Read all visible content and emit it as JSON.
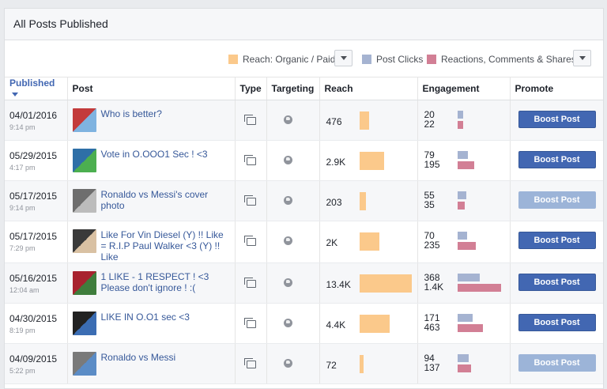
{
  "panel": {
    "title": "All Posts Published"
  },
  "legend": {
    "reach_label": "Reach: Organic / Paid",
    "clicks_label": "Post Clicks",
    "reactions_label": "Reactions, Comments & Shares",
    "colors": {
      "reach": "#fbc98b",
      "clicks": "#a5b3d1",
      "reactions": "#d27f95"
    }
  },
  "columns": {
    "published": "Published",
    "post": "Post",
    "type": "Type",
    "targeting": "Targeting",
    "reach": "Reach",
    "engagement": "Engagement",
    "promote": "Promote"
  },
  "rows": [
    {
      "date": "04/01/2016",
      "time": "9:14 pm",
      "post": "Who is better?",
      "reach": "476",
      "reach_value": 476,
      "clicks": "20",
      "clicks_value": 20,
      "reactions": "22",
      "reactions_value": 22,
      "boost": "Boost Post",
      "boost_enabled": true,
      "thumb": [
        "#c33b3b",
        "#7fb3e0"
      ]
    },
    {
      "date": "05/29/2015",
      "time": "4:17 pm",
      "post": "Vote in O.OOO1 Sec ! <3",
      "reach": "2.9K",
      "reach_value": 2900,
      "clicks": "79",
      "clicks_value": 79,
      "reactions": "195",
      "reactions_value": 195,
      "boost": "Boost Post",
      "boost_enabled": true,
      "thumb": [
        "#2e6fa7",
        "#4caf50"
      ]
    },
    {
      "date": "05/17/2015",
      "time": "9:14 pm",
      "post": "Ronaldo vs Messi's cover photo",
      "reach": "203",
      "reach_value": 203,
      "clicks": "55",
      "clicks_value": 55,
      "reactions": "35",
      "reactions_value": 35,
      "boost": "Boost Post",
      "boost_enabled": false,
      "thumb": [
        "#6e6e6e",
        "#bcbcbc"
      ]
    },
    {
      "date": "05/17/2015",
      "time": "7:29 pm",
      "post": "Like For Vin Diesel (Y) !! Like = R.I.P Paul Walker <3 (Y) !! Like",
      "reach": "2K",
      "reach_value": 2000,
      "clicks": "70",
      "clicks_value": 70,
      "reactions": "235",
      "reactions_value": 235,
      "boost": "Boost Post",
      "boost_enabled": true,
      "thumb": [
        "#3a3a3a",
        "#d9c1a3"
      ]
    },
    {
      "date": "05/16/2015",
      "time": "12:04 am",
      "post": "1 LIKE - 1 RESPECT ! <3 Please don't ignore ! :(",
      "reach": "13.4K",
      "reach_value": 13400,
      "clicks": "368",
      "clicks_value": 368,
      "reactions": "1.4K",
      "reactions_value": 1400,
      "boost": "Boost Post",
      "boost_enabled": true,
      "thumb": [
        "#a8232f",
        "#3f7d3c"
      ]
    },
    {
      "date": "04/30/2015",
      "time": "8:19 pm",
      "post": "LIKE IN O.O1 sec <3",
      "reach": "4.4K",
      "reach_value": 4400,
      "clicks": "171",
      "clicks_value": 171,
      "reactions": "463",
      "reactions_value": 463,
      "boost": "Boost Post",
      "boost_enabled": true,
      "thumb": [
        "#222222",
        "#3b6db3"
      ]
    },
    {
      "date": "04/09/2015",
      "time": "5:22 pm",
      "post": "Ronaldo vs Messi",
      "reach": "72",
      "reach_value": 72,
      "clicks": "94",
      "clicks_value": 94,
      "reactions": "137",
      "reactions_value": 137,
      "boost": "Boost Post",
      "boost_enabled": false,
      "thumb": [
        "#7a7a7a",
        "#5b8cc6"
      ]
    }
  ]
}
